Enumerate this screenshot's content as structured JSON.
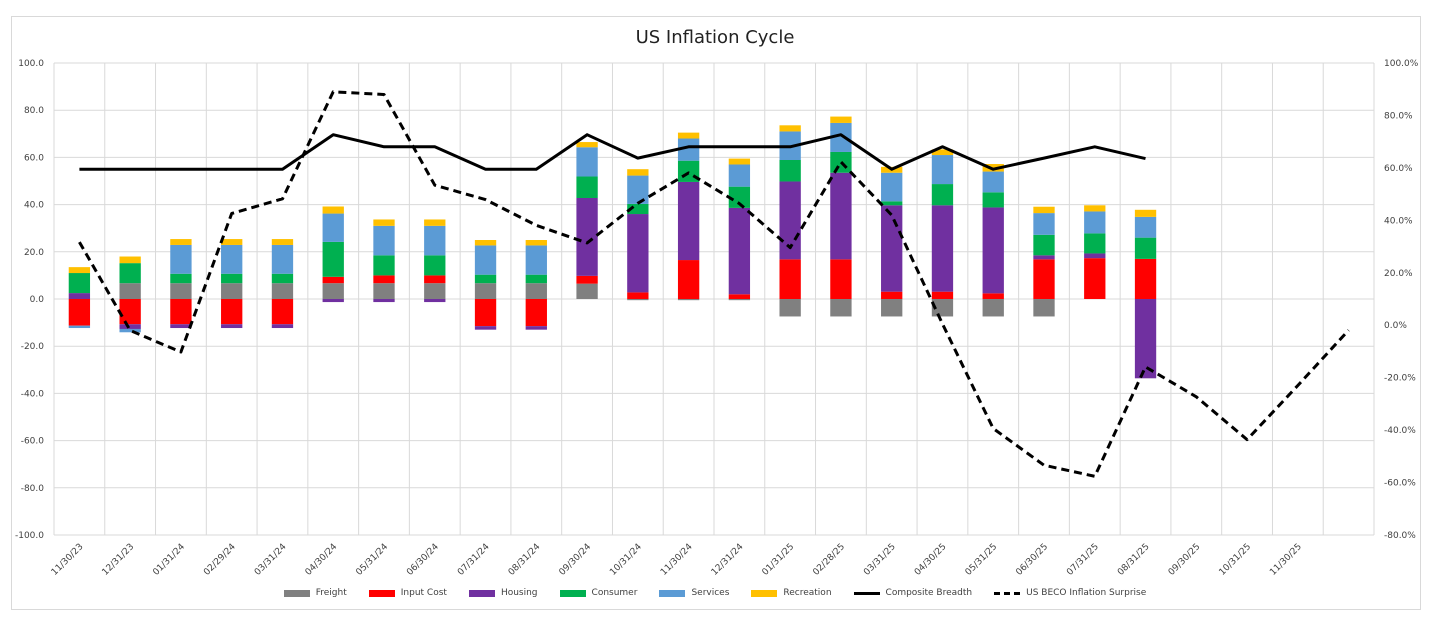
{
  "chart_data": {
    "type": "bar",
    "stacked": true,
    "title": "US Inflation Cycle",
    "xlabel": "",
    "ylabel": "",
    "ylim": [
      -100,
      100
    ],
    "y_ticks": [
      "100.0",
      "80.0",
      "60.0",
      "40.0",
      "20.0",
      "0.0",
      "-20.0",
      "-40.0",
      "-60.0",
      "-80.0",
      "-100.0"
    ],
    "y_tick_values": [
      100,
      80,
      60,
      40,
      20,
      0,
      -20,
      -40,
      -60,
      -80,
      -100
    ],
    "y2lim": [
      -80,
      100
    ],
    "y2_ticks": [
      "100.0%",
      "80.0%",
      "60.0%",
      "40.0%",
      "20.0%",
      "0.0%",
      "-20.0%",
      "-40.0%",
      "-60.0%",
      "-80.0%"
    ],
    "y2_tick_values": [
      100,
      80,
      60,
      40,
      20,
      0,
      -20,
      -40,
      -60,
      -80
    ],
    "grid": true,
    "legend_position": "bottom",
    "categories": [
      "11/30/23",
      "12/31/23",
      "01/31/24",
      "02/29/24",
      "03/31/24",
      "04/30/24",
      "05/31/24",
      "06/30/24",
      "07/31/24",
      "08/31/24",
      "09/30/24",
      "10/31/24",
      "11/30/24",
      "12/31/24",
      "01/31/25",
      "02/28/25",
      "03/31/25",
      "04/30/25",
      "05/31/25",
      "06/30/25",
      "07/31/25",
      "08/31/25",
      "09/30/25",
      "10/31/25",
      "11/30/25",
      ""
    ],
    "series": [
      {
        "name": "Freight",
        "kind": "bar",
        "color": "#808080",
        "values": [
          0,
          6.7,
          6.7,
          6.7,
          6.7,
          6.7,
          6.7,
          6.7,
          6.7,
          6.7,
          6.5,
          -0.5,
          -0.5,
          -0.5,
          -7.4,
          -7.4,
          -7.4,
          -7.4,
          -7.4,
          -7.4,
          0,
          0,
          null,
          null,
          null,
          null
        ]
      },
      {
        "name": "Input Cost",
        "kind": "bar",
        "color": "#ff0000",
        "values": [
          -11.3,
          -10.7,
          -10.7,
          -10.7,
          -10.7,
          2.7,
          3.3,
          3.3,
          -11.5,
          -11.5,
          3.3,
          2.8,
          16.5,
          2.0,
          16.8,
          16.8,
          3.1,
          3.1,
          2.4,
          16.8,
          17.3,
          17.0,
          null,
          null,
          null,
          null
        ]
      },
      {
        "name": "Housing",
        "kind": "bar",
        "color": "#7030a0",
        "values": [
          2.5,
          -2.0,
          -1.6,
          -1.6,
          -1.6,
          -1.3,
          -1.3,
          -1.3,
          -1.5,
          -1.5,
          33.0,
          33.2,
          33.1,
          36.6,
          33.0,
          36.7,
          36.6,
          36.6,
          36.4,
          1.7,
          2.0,
          -33.6,
          null,
          null,
          null,
          null
        ]
      },
      {
        "name": "Consumer",
        "kind": "bar",
        "color": "#00b050",
        "values": [
          8.5,
          8.5,
          4.0,
          4.0,
          4.0,
          14.8,
          8.5,
          8.5,
          3.6,
          3.6,
          9.1,
          4.3,
          9.0,
          9.0,
          9.1,
          8.8,
          1.7,
          9.0,
          6.4,
          8.7,
          8.5,
          9.0,
          null,
          null,
          null,
          null
        ]
      },
      {
        "name": "Services",
        "kind": "bar",
        "color": "#5b9bd5",
        "values": [
          -1.0,
          -1.4,
          12.2,
          12.2,
          12.2,
          12.0,
          12.5,
          12.5,
          12.4,
          12.4,
          12.4,
          12.0,
          9.4,
          9.4,
          12.1,
          12.3,
          12.1,
          12.3,
          8.8,
          9.2,
          9.3,
          8.8,
          null,
          null,
          null,
          null
        ]
      },
      {
        "name": "Recreation",
        "kind": "bar",
        "color": "#ffc000",
        "values": [
          2.5,
          2.8,
          2.5,
          2.5,
          2.5,
          3.0,
          2.7,
          2.7,
          2.3,
          2.3,
          2.2,
          2.7,
          2.5,
          2.5,
          2.6,
          2.7,
          2.5,
          2.4,
          3.2,
          2.7,
          2.6,
          3.0,
          null,
          null,
          null,
          null
        ]
      },
      {
        "name": "Composite Breadth",
        "kind": "line",
        "axis": "left",
        "color": "#000000",
        "dash": false,
        "values": [
          55,
          55,
          55,
          55,
          55,
          69.6,
          64.5,
          64.5,
          55,
          55,
          69.6,
          59.7,
          64.5,
          64.5,
          64.5,
          69.6,
          55,
          64.5,
          55,
          59.7,
          64.5,
          59.5,
          null,
          null,
          null,
          null
        ]
      },
      {
        "name": "US BECO Inflation Surprise",
        "kind": "line",
        "axis": "right",
        "color": "#000000",
        "dash": true,
        "values": [
          31.7,
          -2.0,
          -10.2,
          42.6,
          48.2,
          89.0,
          88.0,
          53.4,
          47.9,
          38.1,
          31.4,
          46.5,
          58.1,
          46.4,
          29.6,
          62.3,
          42.0,
          0.5,
          -39.4,
          -53.4,
          -57.6,
          -15.9,
          -27.3,
          -43.6,
          -23.0,
          -1.9
        ]
      }
    ]
  }
}
